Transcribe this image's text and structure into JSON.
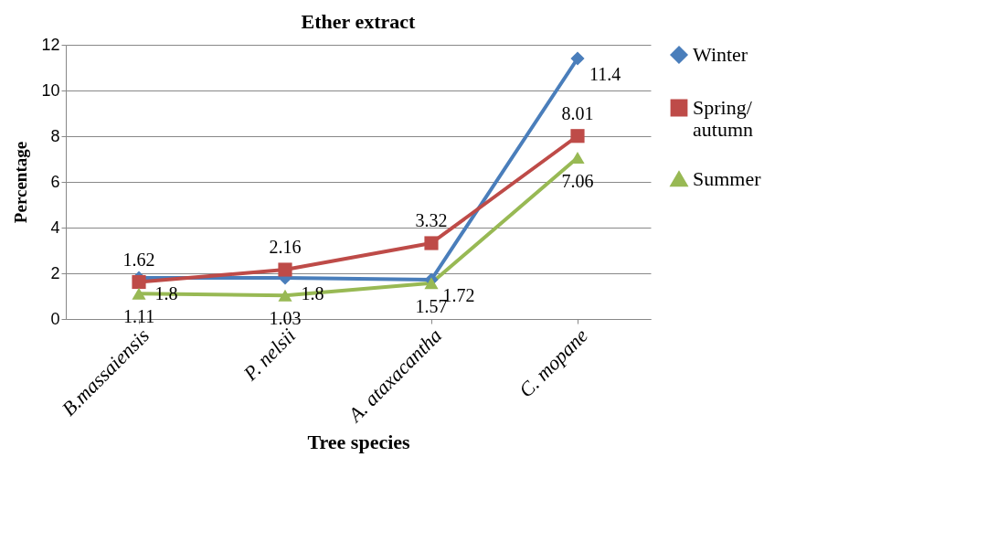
{
  "chart_data": {
    "type": "line",
    "title": "Ether extract",
    "xlabel": "Tree species",
    "ylabel": "Percentage",
    "categories": [
      "B.massaiensis",
      "P. nelsii",
      "A. ataxacantha",
      "C. mopane"
    ],
    "series": [
      {
        "name": "Winter",
        "color": "#4a7ebb",
        "marker": "diamond",
        "values": [
          1.8,
          1.8,
          1.72,
          11.4
        ]
      },
      {
        "name": "Spring/ autumn",
        "color": "#be4b48",
        "marker": "square",
        "values": [
          1.62,
          2.16,
          3.32,
          8.01
        ]
      },
      {
        "name": "Summer",
        "color": "#98b954",
        "marker": "triangle",
        "values": [
          1.11,
          1.03,
          1.57,
          7.06
        ]
      }
    ],
    "ylim": [
      0,
      12
    ],
    "yticks": [
      0,
      2,
      4,
      6,
      8,
      10,
      12
    ],
    "grid": "y",
    "legend": "right",
    "data_labels": true
  }
}
